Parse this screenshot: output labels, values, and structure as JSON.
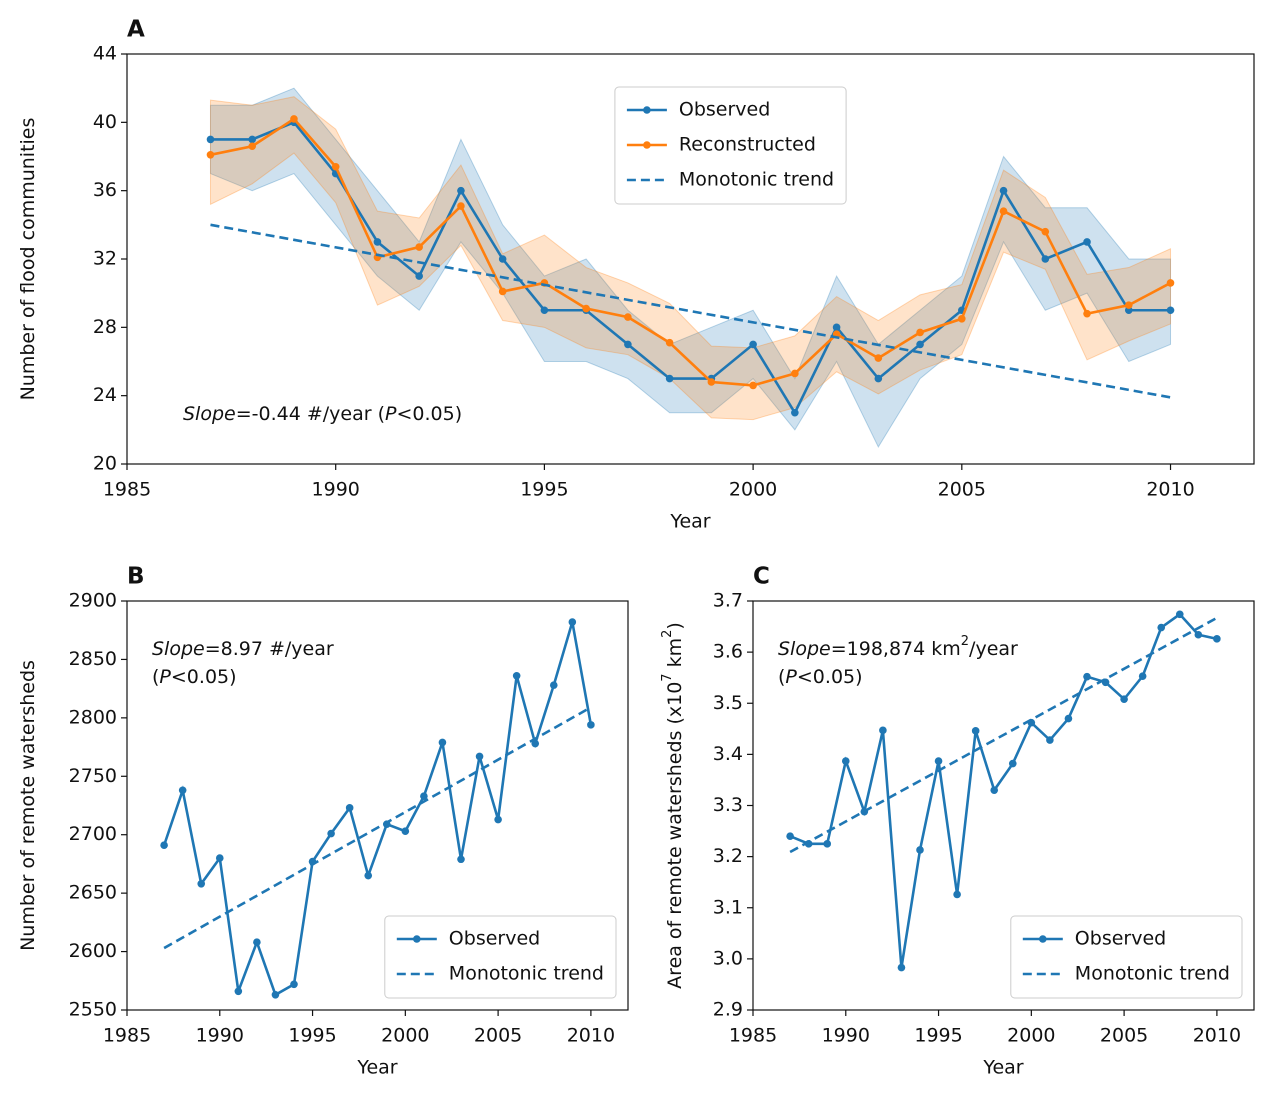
{
  "chart_data": [
    {
      "type": "line",
      "label": "A",
      "xlabel": "Year",
      "ylabel": [
        {
          "text": "Number of flood communities"
        }
      ],
      "xlim": [
        1985,
        2012
      ],
      "xticks": [
        1985,
        1990,
        1995,
        2000,
        2005,
        2010
      ],
      "ylim": [
        20,
        44
      ],
      "yticks": [
        20,
        24,
        28,
        32,
        36,
        40,
        44
      ],
      "x": [
        1987,
        1988,
        1989,
        1990,
        1991,
        1992,
        1993,
        1994,
        1995,
        1996,
        1997,
        1998,
        1999,
        2000,
        2001,
        2002,
        2003,
        2004,
        2005,
        2006,
        2007,
        2008,
        2009,
        2010
      ],
      "legend": "upper center",
      "annotation": [
        [
          {
            "text": "Slope",
            "italic": true
          },
          {
            "text": "=-0.44 #/year ("
          },
          {
            "text": "P",
            "italic": true
          },
          {
            "text": "<0.05)"
          }
        ]
      ],
      "series": [
        {
          "name": "Observed",
          "color": "#1f77b4",
          "marker": true,
          "values": [
            39,
            39,
            40,
            37,
            33,
            31,
            36,
            32,
            29,
            29,
            27,
            25,
            25,
            27,
            23,
            28,
            25,
            27,
            29,
            36,
            32,
            33,
            29,
            29
          ],
          "band": {
            "lower": [
              37,
              36,
              37,
              34,
              31,
              29,
              33,
              30,
              26,
              26,
              25,
              23,
              23,
              25,
              22,
              26,
              21,
              25,
              27,
              33,
              29,
              30,
              26,
              27
            ],
            "upper": [
              41,
              41,
              42,
              39,
              36,
              33,
              39,
              34,
              31,
              32,
              29,
              27,
              28,
              29,
              25,
              31,
              27,
              29,
              31,
              38,
              35,
              35,
              32,
              32
            ]
          }
        },
        {
          "name": "Reconstructed",
          "color": "#ff7f0e",
          "marker": true,
          "values": [
            38.1,
            38.6,
            40.2,
            37.4,
            32.1,
            32.7,
            35.1,
            30.1,
            30.6,
            29.1,
            28.6,
            27.1,
            24.8,
            24.6,
            25.3,
            27.6,
            26.2,
            27.7,
            28.5,
            34.8,
            33.6,
            28.8,
            29.3,
            30.6
          ],
          "band": {
            "lower": [
              35.2,
              36.4,
              38.2,
              35.3,
              29.3,
              30.4,
              32.8,
              28.4,
              28.0,
              26.8,
              26.4,
              25.0,
              22.7,
              22.6,
              23.3,
              25.4,
              24.1,
              25.5,
              26.4,
              32.4,
              31.4,
              26.1,
              27.2,
              28.2
            ],
            "upper": [
              41.3,
              41.0,
              41.5,
              39.6,
              34.8,
              34.4,
              37.5,
              32.3,
              33.4,
              31.5,
              30.6,
              29.4,
              26.9,
              26.8,
              27.5,
              29.8,
              28.4,
              29.9,
              30.5,
              37.2,
              35.6,
              31.1,
              31.5,
              32.6
            ]
          }
        },
        {
          "name": "Monotonic trend",
          "color": "#1f77b4",
          "linestyle": "dashed",
          "x": [
            1987,
            2010
          ],
          "values": [
            34.0,
            23.9
          ]
        }
      ]
    },
    {
      "type": "line",
      "label": "B",
      "xlabel": "Year",
      "ylabel": [
        {
          "text": "Number of remote watersheds"
        }
      ],
      "xlim": [
        1985,
        2012
      ],
      "xticks": [
        1985,
        1990,
        1995,
        2000,
        2005,
        2010
      ],
      "ylim": [
        2550,
        2900
      ],
      "yticks": [
        2550,
        2600,
        2650,
        2700,
        2750,
        2800,
        2850,
        2900
      ],
      "x": [
        1987,
        1988,
        1989,
        1990,
        1991,
        1992,
        1993,
        1994,
        1995,
        1996,
        1997,
        1998,
        1999,
        2000,
        2001,
        2002,
        2003,
        2004,
        2005,
        2006,
        2007,
        2008,
        2009,
        2010
      ],
      "legend": "lower right",
      "annotation": [
        [
          {
            "text": "Slope",
            "italic": true
          },
          {
            "text": "=8.97 #/year"
          }
        ],
        [
          {
            "text": "("
          },
          {
            "text": "P",
            "italic": true
          },
          {
            "text": "<0.05)"
          }
        ]
      ],
      "series": [
        {
          "name": "Observed",
          "color": "#1f77b4",
          "marker": true,
          "values": [
            2691,
            2738,
            2658,
            2680,
            2566,
            2608,
            2563,
            2572,
            2677,
            2701,
            2723,
            2665,
            2709,
            2703,
            2733,
            2779,
            2679,
            2767,
            2713,
            2836,
            2778,
            2828,
            2882,
            2794
          ]
        },
        {
          "name": "Monotonic trend",
          "color": "#1f77b4",
          "linestyle": "dashed",
          "x": [
            1987,
            2010
          ],
          "values": [
            2603,
            2809
          ]
        }
      ]
    },
    {
      "type": "line",
      "label": "C",
      "xlabel": "Year",
      "ylabel": [
        {
          "text": "Area of remote watersheds (x10"
        },
        {
          "text": "7",
          "sup": true
        },
        {
          "text": " km"
        },
        {
          "text": "2",
          "sup": true
        },
        {
          "text": ")"
        }
      ],
      "xlim": [
        1985,
        2012
      ],
      "xticks": [
        1985,
        1990,
        1995,
        2000,
        2005,
        2010
      ],
      "ylim": [
        2.9,
        3.7
      ],
      "yticks": [
        2.9,
        {
          "value": 3,
          "label": "3.0"
        },
        3.1,
        3.2,
        3.3,
        3.4,
        3.5,
        3.6,
        3.7
      ],
      "x": [
        1987,
        1988,
        1989,
        1990,
        1991,
        1992,
        1993,
        1994,
        1995,
        1996,
        1997,
        1998,
        1999,
        2000,
        2001,
        2002,
        2003,
        2004,
        2005,
        2006,
        2007,
        2008,
        2009,
        2010
      ],
      "legend": "lower right",
      "annotation": [
        [
          {
            "text": "Slope",
            "italic": true
          },
          {
            "text": "=198,874 km"
          },
          {
            "text": "2",
            "sup": true
          },
          {
            "text": "/year"
          }
        ],
        [
          {
            "text": "("
          },
          {
            "text": "P",
            "italic": true
          },
          {
            "text": "<0.05)"
          }
        ]
      ],
      "series": [
        {
          "name": "Observed",
          "color": "#1f77b4",
          "marker": true,
          "values": [
            3.24,
            3.225,
            3.225,
            3.387,
            3.288,
            3.447,
            2.983,
            3.213,
            3.387,
            3.126,
            3.446,
            3.33,
            3.382,
            3.462,
            3.428,
            3.47,
            3.552,
            3.541,
            3.508,
            3.553,
            3.648,
            3.674,
            3.634,
            3.626
          ]
        },
        {
          "name": "Monotonic trend",
          "color": "#1f77b4",
          "linestyle": "dashed",
          "x": [
            1987,
            2010
          ],
          "values": [
            3.209,
            3.667
          ]
        }
      ]
    }
  ]
}
